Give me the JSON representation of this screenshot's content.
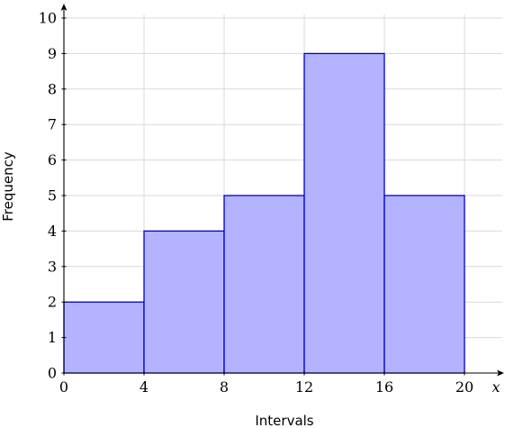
{
  "chart_data": {
    "type": "bar",
    "subtype": "histogram",
    "title": "",
    "xlabel": "Intervals",
    "ylabel": "Frequency",
    "x_axis_variable": "x",
    "bins": [
      {
        "start": 0,
        "end": 4,
        "value": 2
      },
      {
        "start": 4,
        "end": 8,
        "value": 4
      },
      {
        "start": 8,
        "end": 12,
        "value": 5
      },
      {
        "start": 12,
        "end": 16,
        "value": 9
      },
      {
        "start": 16,
        "end": 20,
        "value": 5
      }
    ],
    "xlim": [
      0,
      24.5
    ],
    "ylim": [
      0,
      10.5
    ],
    "xticks": [
      "0",
      "4",
      "8",
      "12",
      "16",
      "20"
    ],
    "yticks": [
      "0",
      "1",
      "2",
      "3",
      "4",
      "5",
      "6",
      "7",
      "8",
      "9",
      "10"
    ],
    "grid": true,
    "legend": "none",
    "colors": {
      "bar_fill": "#b3b3ff",
      "bar_stroke": "#0000cc",
      "grid": "#d9d9d9",
      "axis": "#000000"
    }
  }
}
